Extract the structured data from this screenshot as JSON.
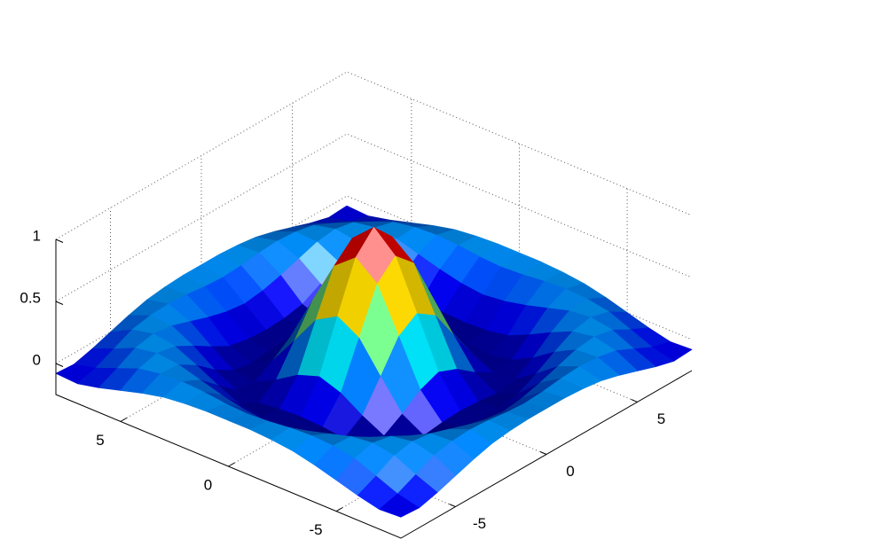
{
  "chart_data": {
    "type": "surface",
    "colormap": "jet",
    "grid": true,
    "xlim": [
      -8,
      8
    ],
    "ylim": [
      -8,
      8
    ],
    "zlim": [
      -0.25,
      1
    ],
    "xticks": [
      -5,
      0,
      5
    ],
    "yticks": [
      -5,
      0,
      5
    ],
    "zticks": [
      0,
      0.5,
      1
    ],
    "x": [
      -8,
      -7,
      -6,
      -5,
      -4,
      -3,
      -2,
      -1,
      0,
      1,
      2,
      3,
      4,
      5,
      6,
      7,
      8
    ],
    "y": [
      -8,
      -7,
      -6,
      -5,
      -4,
      -3,
      -2,
      -1,
      0,
      1,
      2,
      3,
      4,
      5,
      6,
      7,
      8
    ],
    "z": [
      [
        -0.08,
        -0.09,
        -0.05,
        0,
        0.05,
        0.09,
        0.11,
        0.12,
        0.12,
        0.12,
        0.11,
        0.09,
        0.05,
        0,
        -0.05,
        -0.09,
        -0.08
      ],
      [
        -0.09,
        -0.05,
        0.02,
        0.09,
        0.12,
        0.13,
        0.12,
        0.1,
        0.09,
        0.1,
        0.12,
        0.13,
        0.12,
        0.09,
        0.02,
        -0.05,
        -0.09
      ],
      [
        -0.05,
        0.02,
        0.1,
        0.13,
        0.11,
        0.06,
        0.01,
        -0.03,
        -0.05,
        -0.03,
        0.01,
        0.06,
        0.11,
        0.13,
        0.1,
        0.02,
        -0.05
      ],
      [
        0,
        0.09,
        0.13,
        0.1,
        0.02,
        -0.07,
        -0.15,
        -0.18,
        -0.19,
        -0.18,
        -0.15,
        -0.07,
        0.02,
        0.1,
        0.13,
        0.09,
        0
      ],
      [
        0.05,
        0.12,
        0.11,
        0.02,
        -0.1,
        -0.19,
        -0.22,
        -0.2,
        -0.19,
        -0.2,
        -0.22,
        -0.19,
        -0.1,
        0.02,
        0.11,
        0.12,
        0.05
      ],
      [
        0.09,
        0.13,
        0.06,
        -0.07,
        -0.19,
        -0.21,
        -0.12,
        -0.01,
        0.05,
        -0.01,
        -0.12,
        -0.21,
        -0.19,
        -0.07,
        0.06,
        0.13,
        0.09
      ],
      [
        0.11,
        0.12,
        0.01,
        -0.15,
        -0.22,
        -0.12,
        0.11,
        0.35,
        0.45,
        0.35,
        0.11,
        -0.12,
        -0.22,
        -0.15,
        0.01,
        0.12,
        0.11
      ],
      [
        0.12,
        0.1,
        -0.03,
        -0.18,
        -0.2,
        -0.01,
        0.35,
        0.7,
        0.84,
        0.7,
        0.35,
        -0.01,
        -0.2,
        -0.18,
        -0.03,
        0.1,
        0.12
      ],
      [
        0.12,
        0.09,
        -0.05,
        -0.19,
        -0.19,
        0.05,
        0.45,
        0.84,
        1,
        0.84,
        0.45,
        0.05,
        -0.19,
        -0.19,
        -0.05,
        0.09,
        0.12
      ],
      [
        0.12,
        0.1,
        -0.03,
        -0.18,
        -0.2,
        -0.01,
        0.35,
        0.7,
        0.84,
        0.7,
        0.35,
        -0.01,
        -0.2,
        -0.18,
        -0.03,
        0.1,
        0.12
      ],
      [
        0.11,
        0.12,
        0.01,
        -0.15,
        -0.22,
        -0.12,
        0.11,
        0.35,
        0.45,
        0.35,
        0.11,
        -0.12,
        -0.22,
        -0.15,
        0.01,
        0.12,
        0.11
      ],
      [
        0.09,
        0.13,
        0.06,
        -0.07,
        -0.19,
        -0.21,
        -0.12,
        -0.01,
        0.05,
        -0.01,
        -0.12,
        -0.21,
        -0.19,
        -0.07,
        0.06,
        0.13,
        0.09
      ],
      [
        0.05,
        0.12,
        0.11,
        0.02,
        -0.1,
        -0.19,
        -0.22,
        -0.2,
        -0.19,
        -0.2,
        -0.22,
        -0.19,
        -0.1,
        0.02,
        0.11,
        0.12,
        0.05
      ],
      [
        0,
        0.09,
        0.13,
        0.1,
        0.02,
        -0.07,
        -0.15,
        -0.18,
        -0.19,
        -0.18,
        -0.15,
        -0.07,
        0.02,
        0.1,
        0.13,
        0.09,
        0
      ],
      [
        -0.05,
        0.02,
        0.1,
        0.13,
        0.11,
        0.06,
        0.01,
        -0.03,
        -0.05,
        -0.03,
        0.01,
        0.06,
        0.11,
        0.13,
        0.1,
        0.02,
        -0.05
      ],
      [
        -0.09,
        -0.05,
        0.02,
        0.09,
        0.12,
        0.13,
        0.12,
        0.1,
        0.09,
        0.1,
        0.12,
        0.13,
        0.12,
        0.09,
        0.02,
        -0.05,
        -0.09
      ],
      [
        -0.08,
        -0.09,
        -0.05,
        0,
        0.05,
        0.09,
        0.11,
        0.12,
        0.12,
        0.12,
        0.11,
        0.09,
        0.05,
        0,
        -0.05,
        -0.09,
        -0.08
      ]
    ]
  }
}
